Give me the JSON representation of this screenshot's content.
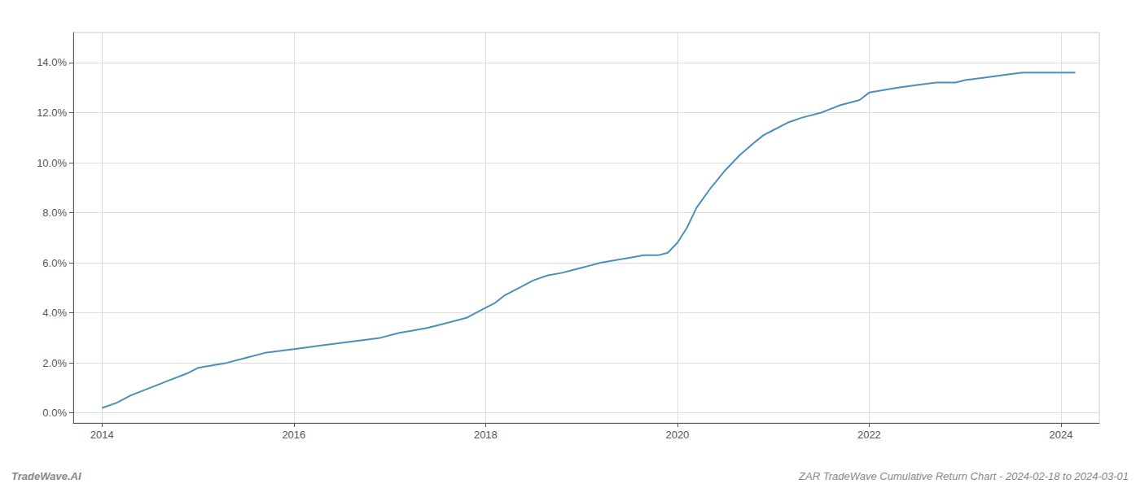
{
  "chart_data": {
    "type": "line",
    "x": [
      2014.0,
      2014.15,
      2014.3,
      2014.5,
      2014.7,
      2014.9,
      2015.0,
      2015.15,
      2015.3,
      2015.5,
      2015.7,
      2015.9,
      2016.1,
      2016.3,
      2016.5,
      2016.7,
      2016.9,
      2017.1,
      2017.25,
      2017.4,
      2017.6,
      2017.8,
      2018.0,
      2018.1,
      2018.2,
      2018.35,
      2018.5,
      2018.65,
      2018.8,
      2018.9,
      2019.0,
      2019.1,
      2019.2,
      2019.35,
      2019.5,
      2019.65,
      2019.8,
      2019.9,
      2020.0,
      2020.1,
      2020.2,
      2020.35,
      2020.5,
      2020.65,
      2020.8,
      2020.9,
      2021.0,
      2021.15,
      2021.3,
      2021.5,
      2021.7,
      2021.9,
      2022.0,
      2022.15,
      2022.3,
      2022.5,
      2022.7,
      2022.9,
      2023.0,
      2023.2,
      2023.4,
      2023.6,
      2023.8,
      2024.0,
      2024.15
    ],
    "values": [
      0.002,
      0.004,
      0.007,
      0.01,
      0.013,
      0.016,
      0.018,
      0.019,
      0.02,
      0.022,
      0.024,
      0.025,
      0.026,
      0.027,
      0.028,
      0.029,
      0.03,
      0.032,
      0.033,
      0.034,
      0.036,
      0.038,
      0.042,
      0.044,
      0.047,
      0.05,
      0.053,
      0.055,
      0.056,
      0.057,
      0.058,
      0.059,
      0.06,
      0.061,
      0.062,
      0.063,
      0.063,
      0.064,
      0.068,
      0.074,
      0.082,
      0.09,
      0.097,
      0.103,
      0.108,
      0.111,
      0.113,
      0.116,
      0.118,
      0.12,
      0.123,
      0.125,
      0.128,
      0.129,
      0.13,
      0.131,
      0.132,
      0.132,
      0.133,
      0.134,
      0.135,
      0.136,
      0.136,
      0.136,
      0.136
    ],
    "color": "#4a90b8",
    "xlim": [
      2013.7,
      2024.4
    ],
    "xticks": [
      2014,
      2016,
      2018,
      2020,
      2022,
      2024
    ],
    "ylim": [
      -0.004,
      0.152
    ],
    "yticks": [
      {
        "value": 0.0,
        "label": "0.0%"
      },
      {
        "value": 0.02,
        "label": "2.0%"
      },
      {
        "value": 0.04,
        "label": "4.0%"
      },
      {
        "value": 0.06,
        "label": "6.0%"
      },
      {
        "value": 0.08,
        "label": "8.0%"
      },
      {
        "value": 0.1,
        "label": "10.0%"
      },
      {
        "value": 0.12,
        "label": "12.0%"
      },
      {
        "value": 0.14,
        "label": "14.0%"
      }
    ],
    "grid": true,
    "annotations": [
      "TradeWave.AI",
      "ZAR TradeWave Cumulative Return Chart - 2024-02-18 to 2024-03-01"
    ]
  }
}
